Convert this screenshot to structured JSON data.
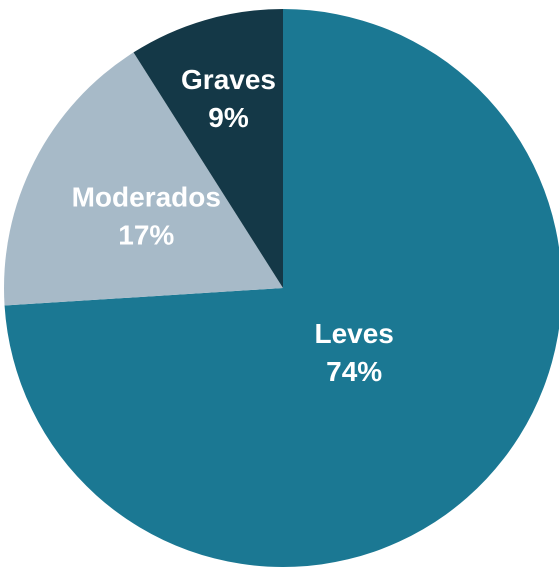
{
  "chart_data": {
    "type": "pie",
    "categories": [
      "Leves",
      "Moderados",
      "Graves"
    ],
    "values": [
      74,
      17,
      9
    ],
    "value_labels": [
      "74%",
      "17%",
      "9%"
    ],
    "colors": [
      "#1b7893",
      "#a7bac8",
      "#143847"
    ]
  }
}
